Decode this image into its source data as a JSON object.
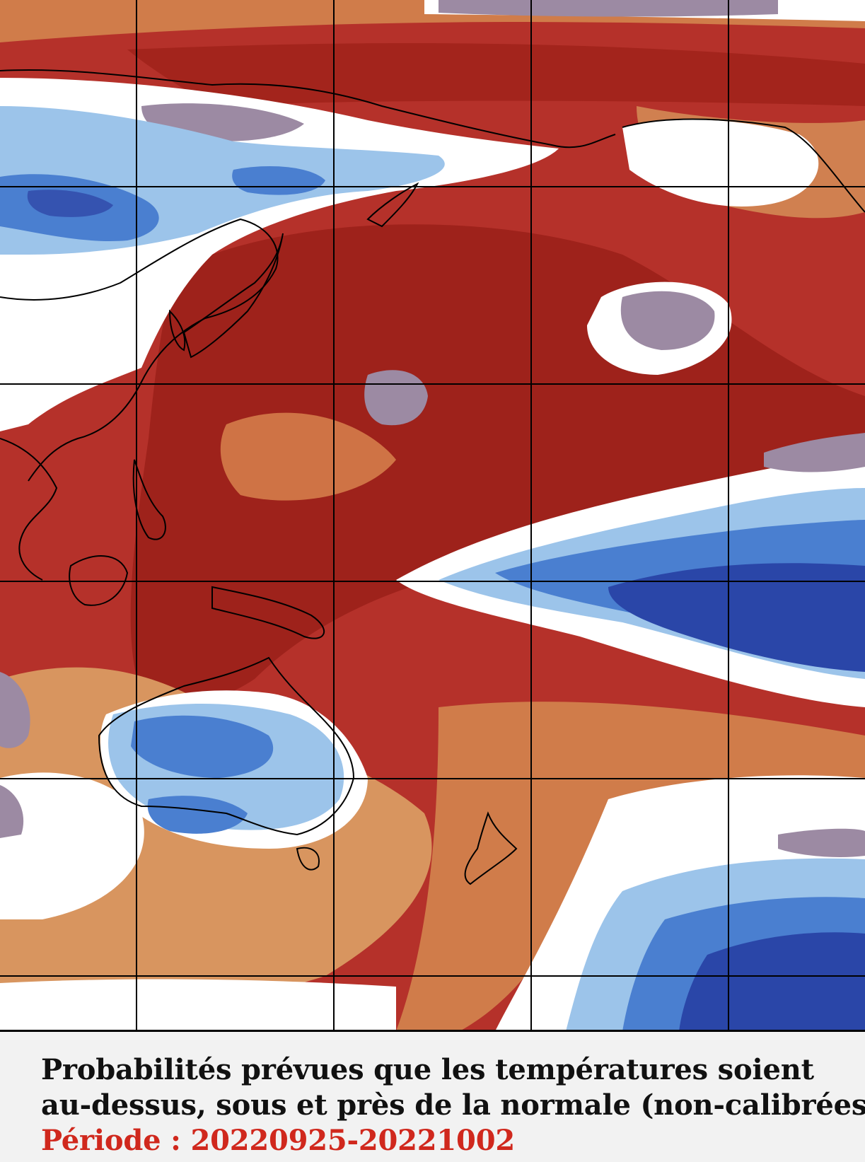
{
  "caption": {
    "line1": "Probabilités prévues que les températures soient",
    "line2": "au-dessus, sous et près de la normale (non-calibrées)",
    "period_label": "Période : 20220925-20221002"
  },
  "legend_colors": {
    "far_above_normal": "#a3241c",
    "above_normal": "#c0403a",
    "slightly_above": "#d07c4a",
    "near_normal_warm": "#dca172",
    "near_normal": "#ffffff",
    "slightly_below": "#9c8aa3",
    "below_normal": "#9cc4ea",
    "below_normal_strong": "#4a7fd0",
    "far_below_normal": "#2a46a8",
    "coastline": "#000000",
    "grid": "#000000"
  }
}
